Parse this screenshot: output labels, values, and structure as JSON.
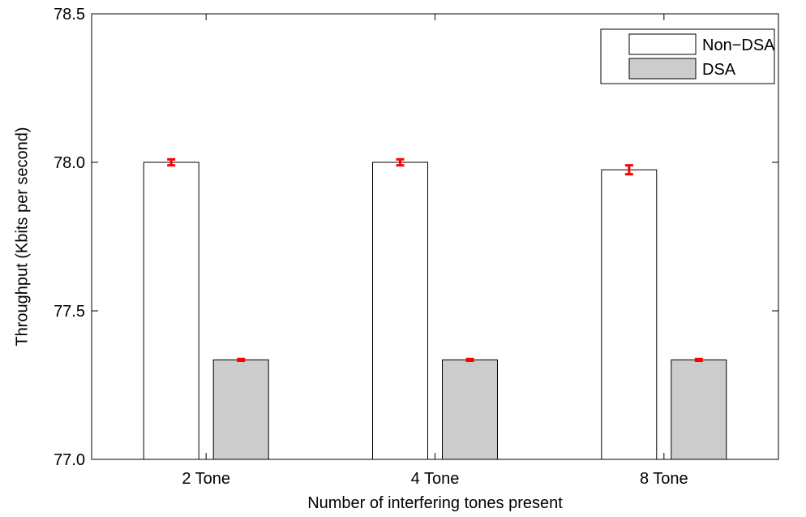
{
  "chart_data": {
    "type": "bar",
    "title": "",
    "xlabel": "Number of interfering tones present",
    "ylabel": "Throughput (Kbits per second)",
    "categories": [
      "2 Tone",
      "4 Tone",
      "8 Tone"
    ],
    "ylim": [
      77.0,
      78.5
    ],
    "yticks": [
      77.0,
      77.5,
      78.0,
      78.5
    ],
    "ytick_labels": [
      "77.0",
      "77.5",
      "78.0",
      "78.5"
    ],
    "grid": false,
    "legend_position": "top-right",
    "series": [
      {
        "name": "Non−DSA",
        "values": [
          78.0,
          78.0,
          77.975
        ],
        "error": [
          0.01,
          0.01,
          0.015
        ],
        "color": "#ffffff"
      },
      {
        "name": "DSA",
        "values": [
          77.335,
          77.335,
          77.335
        ],
        "error": [
          0.003,
          0.003,
          0.003
        ],
        "color": "#cccccc"
      }
    ],
    "error_bar_color": "#ff0000"
  }
}
